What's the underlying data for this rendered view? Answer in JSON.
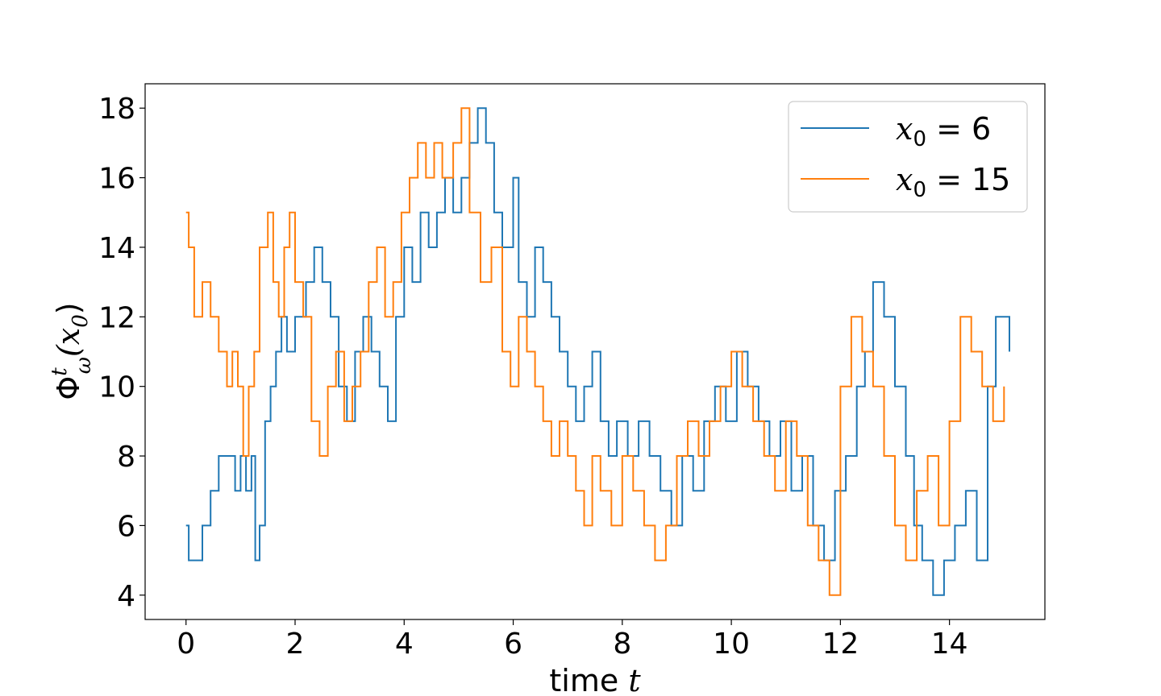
{
  "chart_data": {
    "type": "line",
    "step": true,
    "xlabel_text": "time",
    "xlabel_var": "t",
    "ylabel_main": "Φ",
    "ylabel_sup": "t",
    "ylabel_sub": "ω",
    "ylabel_arg": "(x",
    "ylabel_arg_sub": "0",
    "ylabel_close": ")",
    "xlim": [
      -0.75,
      15.75
    ],
    "ylim": [
      3.3,
      18.7
    ],
    "xticks": [
      0,
      2,
      4,
      6,
      8,
      10,
      12,
      14
    ],
    "yticks": [
      4,
      6,
      8,
      10,
      12,
      14,
      16,
      18
    ],
    "grid": false,
    "legend_position": "top-right",
    "series": [
      {
        "name": "x0 = 6",
        "legend_var": "x",
        "legend_sub": "0",
        "legend_eq": " = 6",
        "color": "#1f77b4",
        "x": [
          0.0,
          0.05,
          0.3,
          0.45,
          0.6,
          0.7,
          0.9,
          1.0,
          1.1,
          1.2,
          1.27,
          1.35,
          1.45,
          1.55,
          1.65,
          1.75,
          1.85,
          2.0,
          2.2,
          2.35,
          2.5,
          2.65,
          2.8,
          2.95,
          3.1,
          3.25,
          3.4,
          3.55,
          3.7,
          3.85,
          4.0,
          4.15,
          4.3,
          4.45,
          4.6,
          4.75,
          4.9,
          5.05,
          5.2,
          5.35,
          5.5,
          5.65,
          5.8,
          6.0,
          6.1,
          6.25,
          6.4,
          6.55,
          6.7,
          6.85,
          7.0,
          7.15,
          7.3,
          7.45,
          7.6,
          7.75,
          7.9,
          8.1,
          8.3,
          8.5,
          8.7,
          8.9,
          9.1,
          9.3,
          9.5,
          9.7,
          9.9,
          10.1,
          10.3,
          10.5,
          10.7,
          10.9,
          11.1,
          11.3,
          11.5,
          11.7,
          11.9,
          12.1,
          12.3,
          12.45,
          12.6,
          12.8,
          13.0,
          13.2,
          13.35,
          13.5,
          13.7,
          13.9,
          14.1,
          14.3,
          14.5,
          14.7,
          14.85,
          15.1
        ],
        "y": [
          6,
          5,
          6,
          7,
          8,
          8,
          7,
          8,
          7,
          8,
          5,
          6,
          9,
          10,
          11,
          12,
          11,
          12,
          13,
          14,
          13,
          12,
          10,
          9,
          11,
          12,
          11,
          10,
          9,
          12,
          14,
          13,
          15,
          14,
          15,
          16,
          15,
          16,
          17,
          18,
          17,
          15,
          14,
          16,
          13,
          12,
          14,
          13,
          12,
          11,
          10,
          9,
          10,
          11,
          9,
          8,
          9,
          8,
          9,
          8,
          7,
          6,
          8,
          7,
          9,
          10,
          9,
          11,
          10,
          9,
          8,
          9,
          7,
          8,
          6,
          5,
          7,
          8,
          10,
          11,
          13,
          12,
          10,
          8,
          6,
          5,
          4,
          5,
          6,
          7,
          5,
          10,
          12,
          11
        ],
        "xend": 15.1
      },
      {
        "name": "x0 = 15",
        "legend_var": "x",
        "legend_sub": "0",
        "legend_eq": " = 15",
        "color": "#ff7f0e",
        "x": [
          0.0,
          0.05,
          0.15,
          0.3,
          0.45,
          0.6,
          0.75,
          0.85,
          0.95,
          1.05,
          1.15,
          1.25,
          1.35,
          1.5,
          1.6,
          1.7,
          1.8,
          1.9,
          2.0,
          2.15,
          2.3,
          2.45,
          2.6,
          2.75,
          2.9,
          3.05,
          3.2,
          3.35,
          3.5,
          3.65,
          3.8,
          3.95,
          4.1,
          4.25,
          4.4,
          4.55,
          4.7,
          4.9,
          5.05,
          5.2,
          5.4,
          5.6,
          5.8,
          5.95,
          6.1,
          6.25,
          6.4,
          6.55,
          6.7,
          6.85,
          7.0,
          7.15,
          7.3,
          7.45,
          7.6,
          7.8,
          8.0,
          8.2,
          8.4,
          8.6,
          8.8,
          9.0,
          9.2,
          9.4,
          9.6,
          9.8,
          10.0,
          10.2,
          10.4,
          10.6,
          10.8,
          11.0,
          11.2,
          11.4,
          11.6,
          11.8,
          12.0,
          12.2,
          12.4,
          12.6,
          12.8,
          13.0,
          13.2,
          13.4,
          13.6,
          13.8,
          14.0,
          14.2,
          14.4,
          14.6,
          14.8,
          15.0
        ],
        "y": [
          15,
          14,
          12,
          13,
          12,
          11,
          10,
          11,
          10,
          8,
          10,
          11,
          14,
          15,
          13,
          12,
          14,
          15,
          13,
          12,
          9,
          8,
          10,
          11,
          9,
          10,
          11,
          13,
          14,
          12,
          13,
          15,
          16,
          17,
          16,
          17,
          16,
          17,
          18,
          15,
          13,
          14,
          11,
          10,
          12,
          11,
          10,
          9,
          8,
          9,
          8,
          7,
          6,
          8,
          7,
          6,
          8,
          7,
          6,
          5,
          6,
          8,
          9,
          8,
          9,
          10,
          11,
          10,
          9,
          8,
          7,
          9,
          8,
          6,
          5,
          4,
          10,
          12,
          11,
          10,
          8,
          6,
          5,
          7,
          8,
          6,
          9,
          12,
          11,
          10,
          9,
          10
        ],
        "xend": 15.0
      }
    ]
  }
}
